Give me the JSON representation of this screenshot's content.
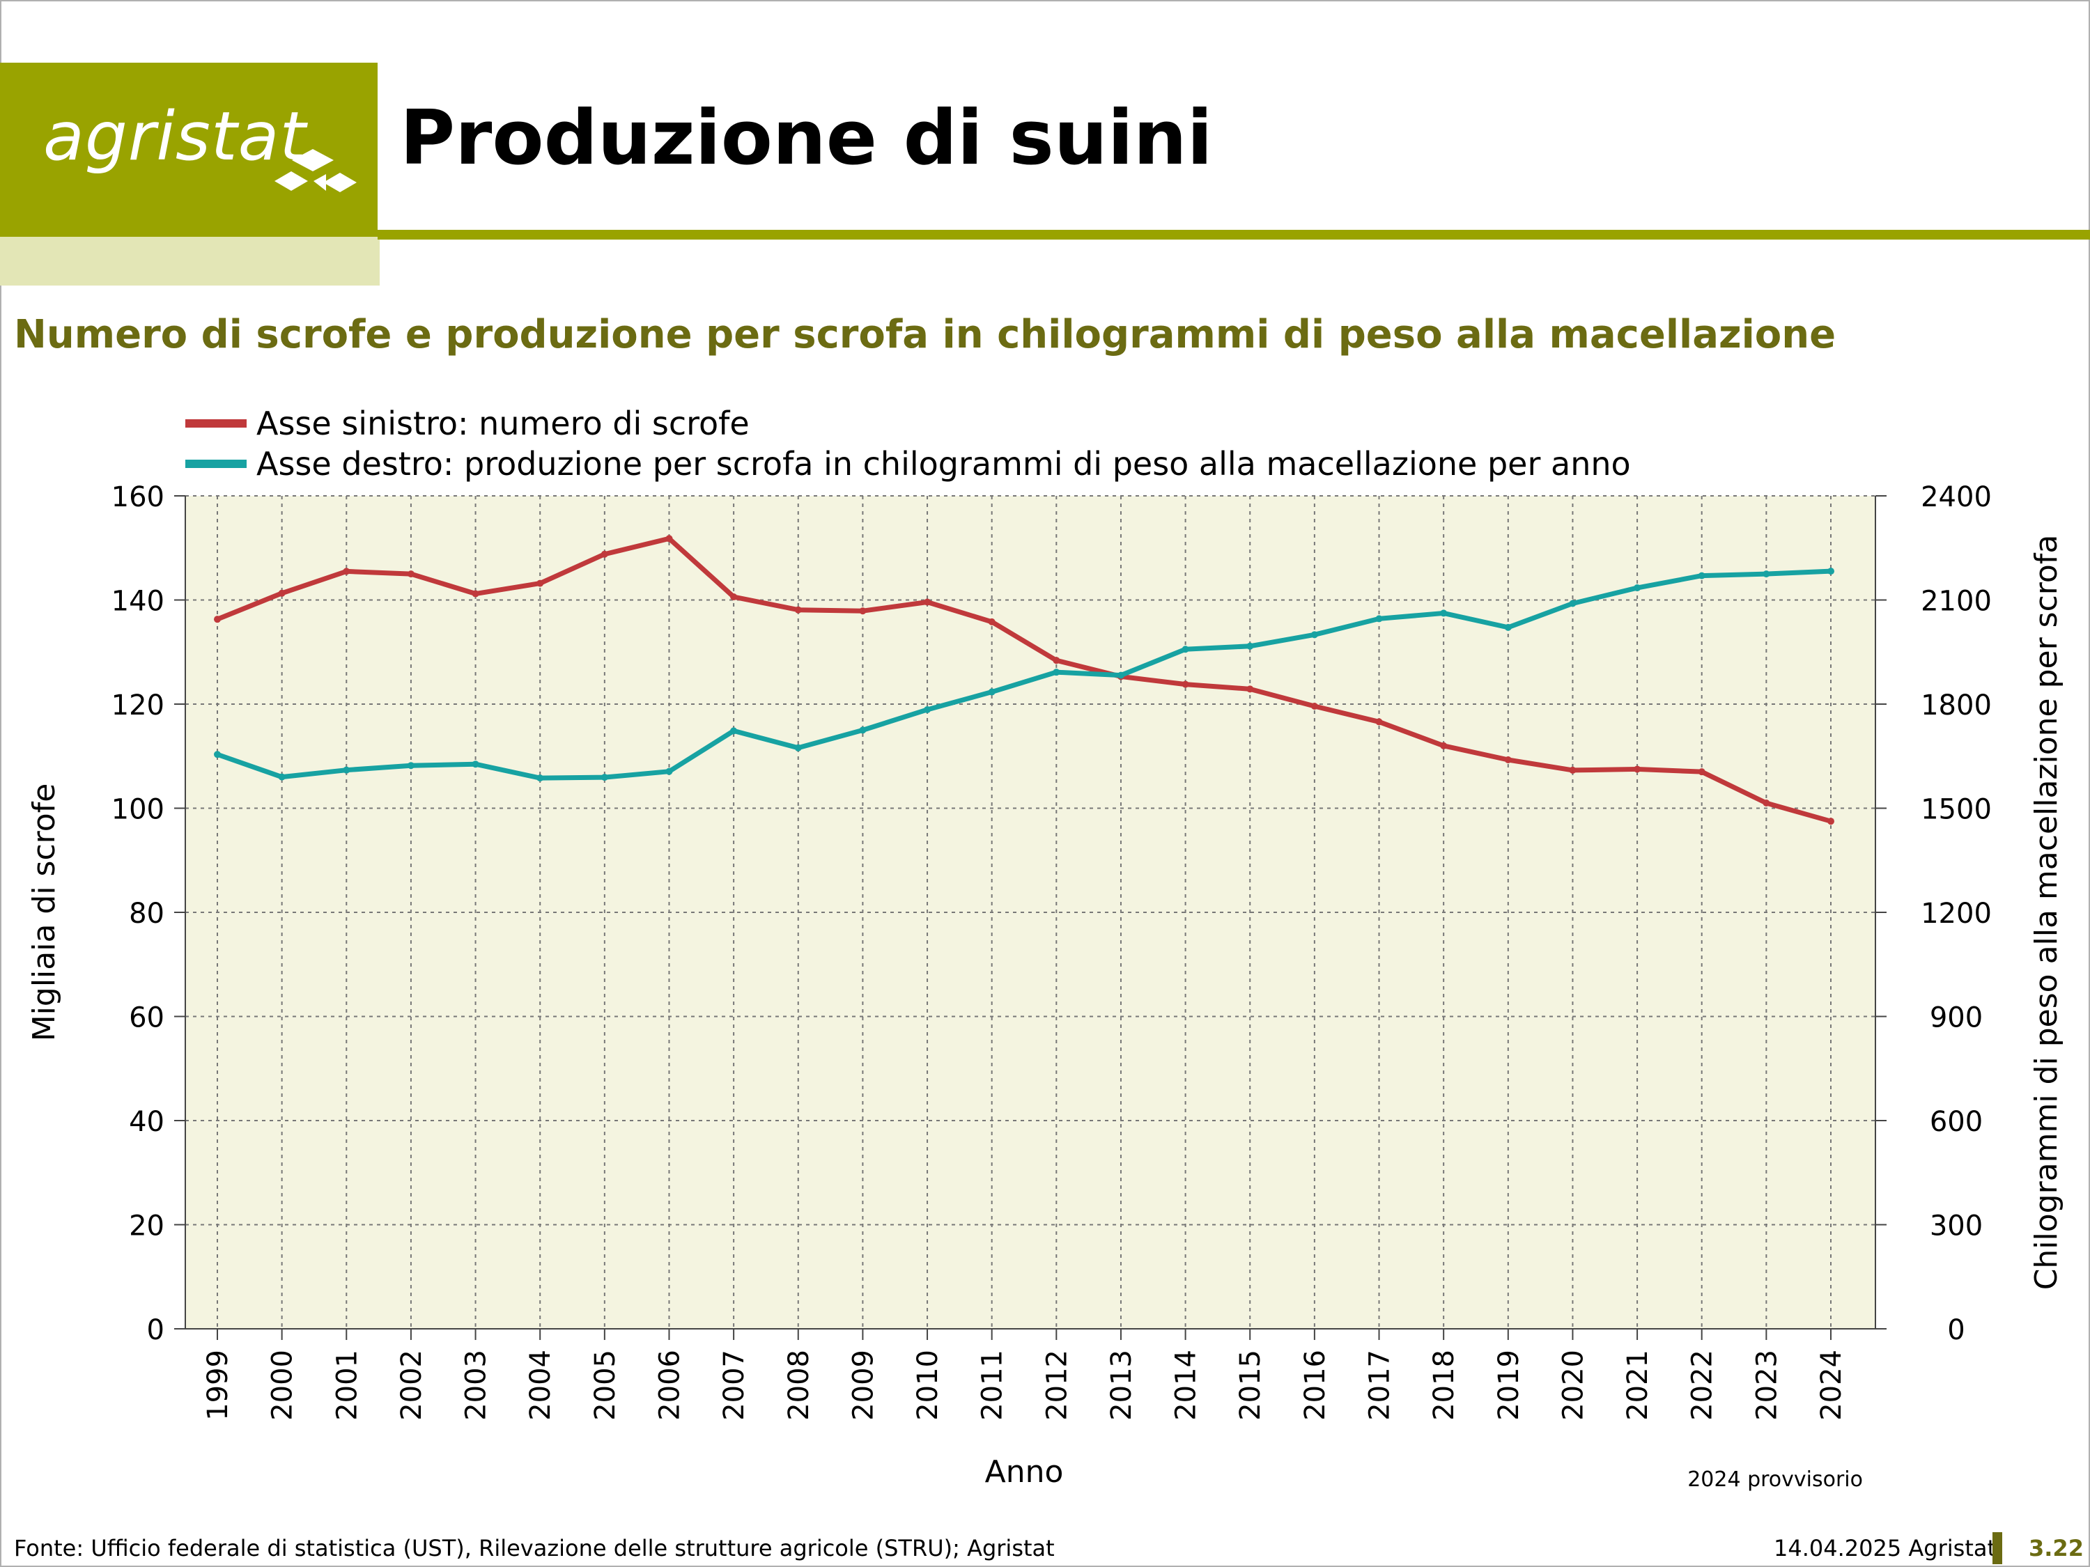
{
  "header": {
    "logo_text": "agristat",
    "title": "Produzione di suini",
    "brand_color": "#99a300"
  },
  "subtitle": "Numero di scrofe e produzione per scrofa in chilogrammi di peso alla macellazione",
  "footer": {
    "source": "Fonte: Ufficio federale di statistica (UST), Rilevazione delle strutture agricole (STRU); Agristat",
    "date": "14.04.2025 Agristat",
    "page": "3.22"
  },
  "chart_data": {
    "type": "line",
    "title": "",
    "xlabel": "Anno",
    "ylabel_left": "Migliaia di scrofe",
    "ylabel_right": "Chilogrammi di peso alla macellazione per scrofa",
    "note": "2024 provvisorio",
    "ylim_left": [
      0,
      160
    ],
    "yticks_left": [
      0,
      20,
      40,
      60,
      80,
      100,
      120,
      140,
      160
    ],
    "ylim_right": [
      0,
      2400
    ],
    "yticks_right": [
      0,
      300,
      600,
      900,
      1200,
      1500,
      1800,
      2100,
      2400
    ],
    "grid": true,
    "legend_position": "top-left",
    "x": [
      "1999",
      "2000",
      "2001",
      "2002",
      "2003",
      "2004",
      "2005",
      "2006",
      "2007",
      "2008",
      "2009",
      "2010",
      "2011",
      "2012",
      "2013",
      "2014",
      "2015",
      "2016",
      "2017",
      "2018",
      "2019",
      "2020",
      "2021",
      "2022",
      "2023",
      "2024"
    ],
    "series": [
      {
        "name": "Asse sinistro: numero di scrofe",
        "axis": "left",
        "color": "#c0393b",
        "values": [
          136.3,
          141.3,
          145.5,
          145.0,
          141.2,
          143.2,
          148.8,
          151.8,
          140.6,
          138.1,
          137.9,
          139.6,
          135.8,
          128.4,
          125.3,
          123.8,
          122.9,
          119.6,
          116.6,
          112.0,
          109.3,
          107.3,
          107.5,
          107.0,
          101.0,
          97.5
        ]
      },
      {
        "name": "Asse destro: produzione per scrofa in chilogrammi di peso alla macellazione per anno",
        "axis": "right",
        "color": "#17a2a2",
        "values": [
          1655,
          1590,
          1610,
          1623,
          1627,
          1587,
          1589,
          1606,
          1723,
          1674,
          1725,
          1784,
          1835,
          1892,
          1883,
          1958,
          1967,
          2000,
          2046,
          2062,
          2021,
          2090,
          2135,
          2170,
          2175,
          2183
        ]
      }
    ]
  }
}
